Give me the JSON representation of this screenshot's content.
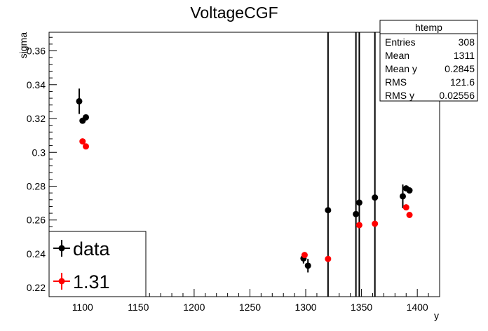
{
  "chart_data": {
    "type": "scatter",
    "title": "VoltageCGF",
    "xlabel": "y",
    "ylabel": "sigma",
    "xlim": [
      1070,
      1420
    ],
    "ylim": [
      0.2147,
      0.371
    ],
    "x_ticks": [
      1100,
      1150,
      1200,
      1250,
      1300,
      1350,
      1400
    ],
    "y_ticks": [
      0.22,
      0.24,
      0.26,
      0.28,
      0.3,
      0.32,
      0.34,
      0.36
    ],
    "y_tick_labels": [
      "0.22",
      "0.24",
      "0.26",
      "0.28",
      "0.3",
      "0.32",
      "0.34",
      "0.36"
    ],
    "grid": false,
    "series": [
      {
        "name": "data",
        "color": "#000000",
        "points": [
          {
            "x": 1097,
            "y": 0.3302,
            "err": 0.0075
          },
          {
            "x": 1100,
            "y": 0.3187,
            "err": 0.0015
          },
          {
            "x": 1103,
            "y": 0.3207,
            "err": 0.0015
          },
          {
            "x": 1298,
            "y": 0.2373,
            "err": 0.003
          },
          {
            "x": 1302,
            "y": 0.233,
            "err": 0.004
          },
          {
            "x": 1320,
            "y": 0.2658,
            "err": 0.2
          },
          {
            "x": 1345,
            "y": 0.2635,
            "err": 0.2
          },
          {
            "x": 1348,
            "y": 0.2703,
            "err": 0.2
          },
          {
            "x": 1362,
            "y": 0.2733,
            "err": 0.2
          },
          {
            "x": 1387,
            "y": 0.274,
            "err": 0.007
          },
          {
            "x": 1390,
            "y": 0.2787,
            "err": 0.0015
          },
          {
            "x": 1393,
            "y": 0.2775,
            "err": 0.0015
          }
        ]
      },
      {
        "name": "1.31",
        "color": "#ff0000",
        "points": [
          {
            "x": 1100,
            "y": 0.3065,
            "err": 0.001
          },
          {
            "x": 1103,
            "y": 0.3035,
            "err": 0.001
          },
          {
            "x": 1299,
            "y": 0.2393,
            "err": 0.001
          },
          {
            "x": 1320,
            "y": 0.237,
            "err": 0.001
          },
          {
            "x": 1348,
            "y": 0.257,
            "err": 0.001
          },
          {
            "x": 1362,
            "y": 0.2578,
            "err": 0.001
          },
          {
            "x": 1390,
            "y": 0.2675,
            "err": 0.001
          },
          {
            "x": 1393,
            "y": 0.263,
            "err": 0.001
          }
        ]
      }
    ],
    "legend": {
      "placement": "bottom-left",
      "entries": [
        "data",
        "1.31"
      ]
    },
    "stats_box": {
      "title": "htemp",
      "rows": [
        {
          "label": "Entries",
          "value": "308"
        },
        {
          "label": "Mean",
          "value": "1311"
        },
        {
          "label": "Mean y",
          "value": "0.2845"
        },
        {
          "label": "RMS",
          "value": "121.6"
        },
        {
          "label": "RMS y",
          "value": "0.02556"
        }
      ]
    }
  }
}
